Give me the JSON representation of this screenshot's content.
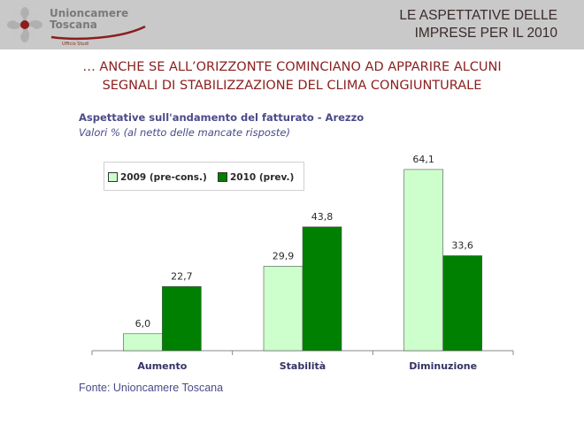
{
  "header": {
    "logo_name": "Unioncamere\nToscana",
    "logo_sub": "Ufficio Studi",
    "title": "LE ASPETTATIVE DELLE\nIMPRESE PER IL 2010"
  },
  "subtitle": "… ANCHE SE ALL’ORIZZONTE COMINCIANO AD APPARIRE ALCUNI\nSEGNALI DI STABILIZZAZIONE DEL CLIMA CONGIUNTURALE",
  "source": "Fonte: Unioncamere Toscana",
  "colors": {
    "series_2009": "#ccffcc",
    "series_2010": "#008000",
    "accent": "#8b1e1e"
  },
  "chart_data": {
    "type": "bar",
    "title": "Aspettative sull'andamento del fatturato - Arezzo",
    "subtitle": "Valori % (al netto delle mancate risposte)",
    "categories": [
      "Aumento",
      "Stabilità",
      "Diminuzione"
    ],
    "series": [
      {
        "name": "2009 (pre-cons.)",
        "values": [
          6.0,
          29.9,
          64.1
        ],
        "labels": [
          "6,0",
          "29,9",
          "64,1"
        ]
      },
      {
        "name": "2010 (prev.)",
        "values": [
          22.7,
          43.8,
          33.6
        ],
        "labels": [
          "22,7",
          "43,8",
          "33,6"
        ]
      }
    ],
    "ylim": [
      0,
      70
    ],
    "grid": false,
    "legend_position": "top-left"
  }
}
